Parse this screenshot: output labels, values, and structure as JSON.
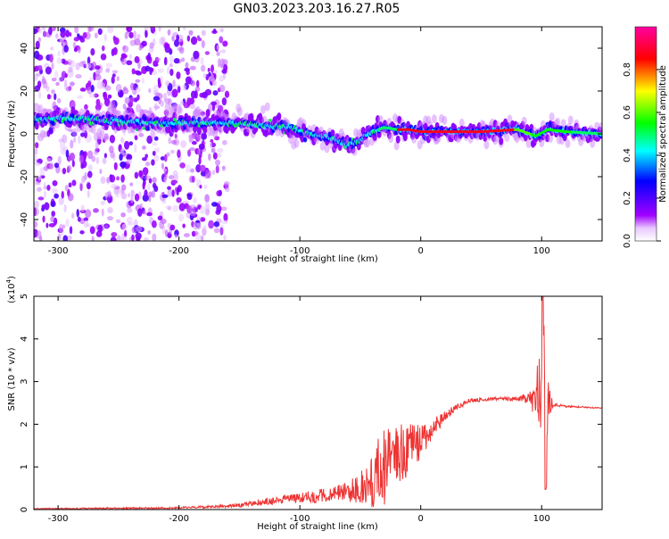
{
  "title": "GN03.2023.203.16.27.R05",
  "colors": {
    "snr_line": "#ee3333",
    "background": "#ffffff",
    "axis": "#000000"
  },
  "chart_data": [
    {
      "type": "heatmap",
      "xlabel": "Height of straight line (km)",
      "ylabel": "Frequency (Hz)",
      "xlim": [
        -320,
        150
      ],
      "ylim": [
        -50,
        50
      ],
      "xticks": [
        -300,
        -200,
        -100,
        0,
        100
      ],
      "yticks": [
        -40,
        -20,
        0,
        20,
        40
      ],
      "colorbar": {
        "label": "Normalized spectral amplitude",
        "range": [
          0,
          1
        ],
        "ticks": [
          0.0,
          0.2,
          0.4,
          0.6,
          0.8
        ],
        "colormap": [
          "#ffffff",
          "#a000ff",
          "#0000ff",
          "#00ffff",
          "#00ff00",
          "#ffff00",
          "#ff0000",
          "#ff00a0"
        ]
      },
      "ridge": {
        "x": [
          -310,
          -280,
          -250,
          -220,
          -190,
          -160,
          -130,
          -110,
          -90,
          -75,
          -60,
          -50,
          -40,
          -30,
          -20,
          -10,
          0,
          20,
          50,
          80,
          95,
          105,
          120,
          150
        ],
        "y": [
          7,
          7,
          6,
          5,
          5,
          5,
          4,
          3,
          0,
          -2,
          -5,
          -3,
          1,
          3,
          2,
          2,
          1,
          1,
          1,
          2,
          -1,
          2,
          1,
          0
        ]
      },
      "noise_region_x": [
        -320,
        -170
      ],
      "grid": false
    },
    {
      "type": "line",
      "xlabel": "Height of straight line (km)",
      "ylabel": "SNR (10 * v/v)",
      "yscale_label": "(x10",
      "yscale_exponent": "4",
      "yscale_close": ")",
      "xlim": [
        -320,
        150
      ],
      "ylim": [
        0,
        5
      ],
      "xticks": [
        -300,
        -200,
        -100,
        0,
        100
      ],
      "yticks": [
        0,
        1,
        2,
        3,
        4,
        5
      ],
      "series": [
        {
          "envelope_x": [
            -320,
            -250,
            -200,
            -170,
            -150,
            -130,
            -110,
            -90,
            -70,
            -50,
            -40,
            -30,
            -20,
            -10,
            0,
            10,
            20,
            30,
            40,
            60,
            80,
            90,
            95,
            98,
            100,
            102,
            104,
            106,
            110,
            120,
            150
          ],
          "base": [
            0.02,
            0.03,
            0.04,
            0.07,
            0.1,
            0.18,
            0.25,
            0.3,
            0.35,
            0.5,
            0.8,
            1.0,
            1.2,
            1.4,
            1.6,
            1.9,
            2.2,
            2.4,
            2.55,
            2.6,
            2.6,
            2.6,
            2.6,
            2.5,
            2.5,
            2.4,
            2.6,
            2.5,
            2.45,
            2.42,
            2.38
          ],
          "noise": [
            0.01,
            0.02,
            0.02,
            0.03,
            0.05,
            0.08,
            0.1,
            0.15,
            0.2,
            0.35,
            0.8,
            0.9,
            0.8,
            0.6,
            0.4,
            0.25,
            0.12,
            0.07,
            0.05,
            0.04,
            0.05,
            0.15,
            0.5,
            1.2,
            2.4,
            2.0,
            1.5,
            0.4,
            0.05,
            0.02,
            0.01
          ]
        }
      ],
      "grid": false
    }
  ]
}
